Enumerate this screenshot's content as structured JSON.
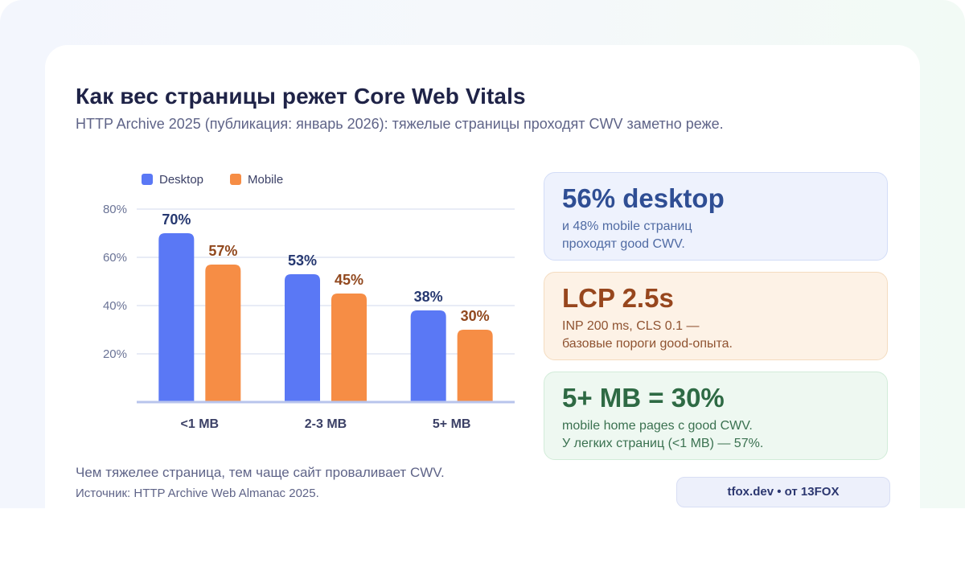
{
  "header": {
    "title": "Как вес страницы режет Core Web Vitals",
    "subtitle": "HTTP Archive 2025 (публикация: январь 2026): тяжелые страницы проходят CWV заметно реже."
  },
  "colors": {
    "desktop": "#5a78f5",
    "mobile": "#f68d45",
    "desktop_label": "#263870",
    "mobile_label": "#91481e"
  },
  "chart_data": {
    "type": "bar",
    "categories": [
      "<1 MB",
      "2-3 MB",
      "5+ MB"
    ],
    "series": [
      {
        "name": "Desktop",
        "values": [
          70,
          53,
          38
        ],
        "value_labels": [
          "70%",
          "53%",
          "38%"
        ]
      },
      {
        "name": "Mobile",
        "values": [
          57,
          45,
          30
        ],
        "value_labels": [
          "57%",
          "45%",
          "30%"
        ]
      }
    ],
    "ylim": [
      0,
      80
    ],
    "yticks": [
      20,
      40,
      60,
      80
    ],
    "ytick_labels": [
      "20%",
      "40%",
      "60%",
      "80%"
    ],
    "grid": true,
    "legend_position": "top-left"
  },
  "footer": {
    "note": "Чем тяжелее страница, тем чаще сайт проваливает CWV.",
    "source": "Источник: HTTP Archive Web Almanac 2025."
  },
  "stats": [
    {
      "headline": "56% desktop",
      "lines": [
        "и 48% mobile страниц",
        "проходят good CWV."
      ]
    },
    {
      "headline": "LCP 2.5s",
      "lines": [
        "INP 200 ms, CLS 0.1 —",
        "базовые пороги good-опыта."
      ]
    },
    {
      "headline": "5+ MB = 30%",
      "lines": [
        "mobile home pages с good CWV.",
        "У легких страниц (<1 MB) — 57%."
      ]
    }
  ],
  "brand": {
    "label": "tfox.dev • от 13FOX"
  }
}
